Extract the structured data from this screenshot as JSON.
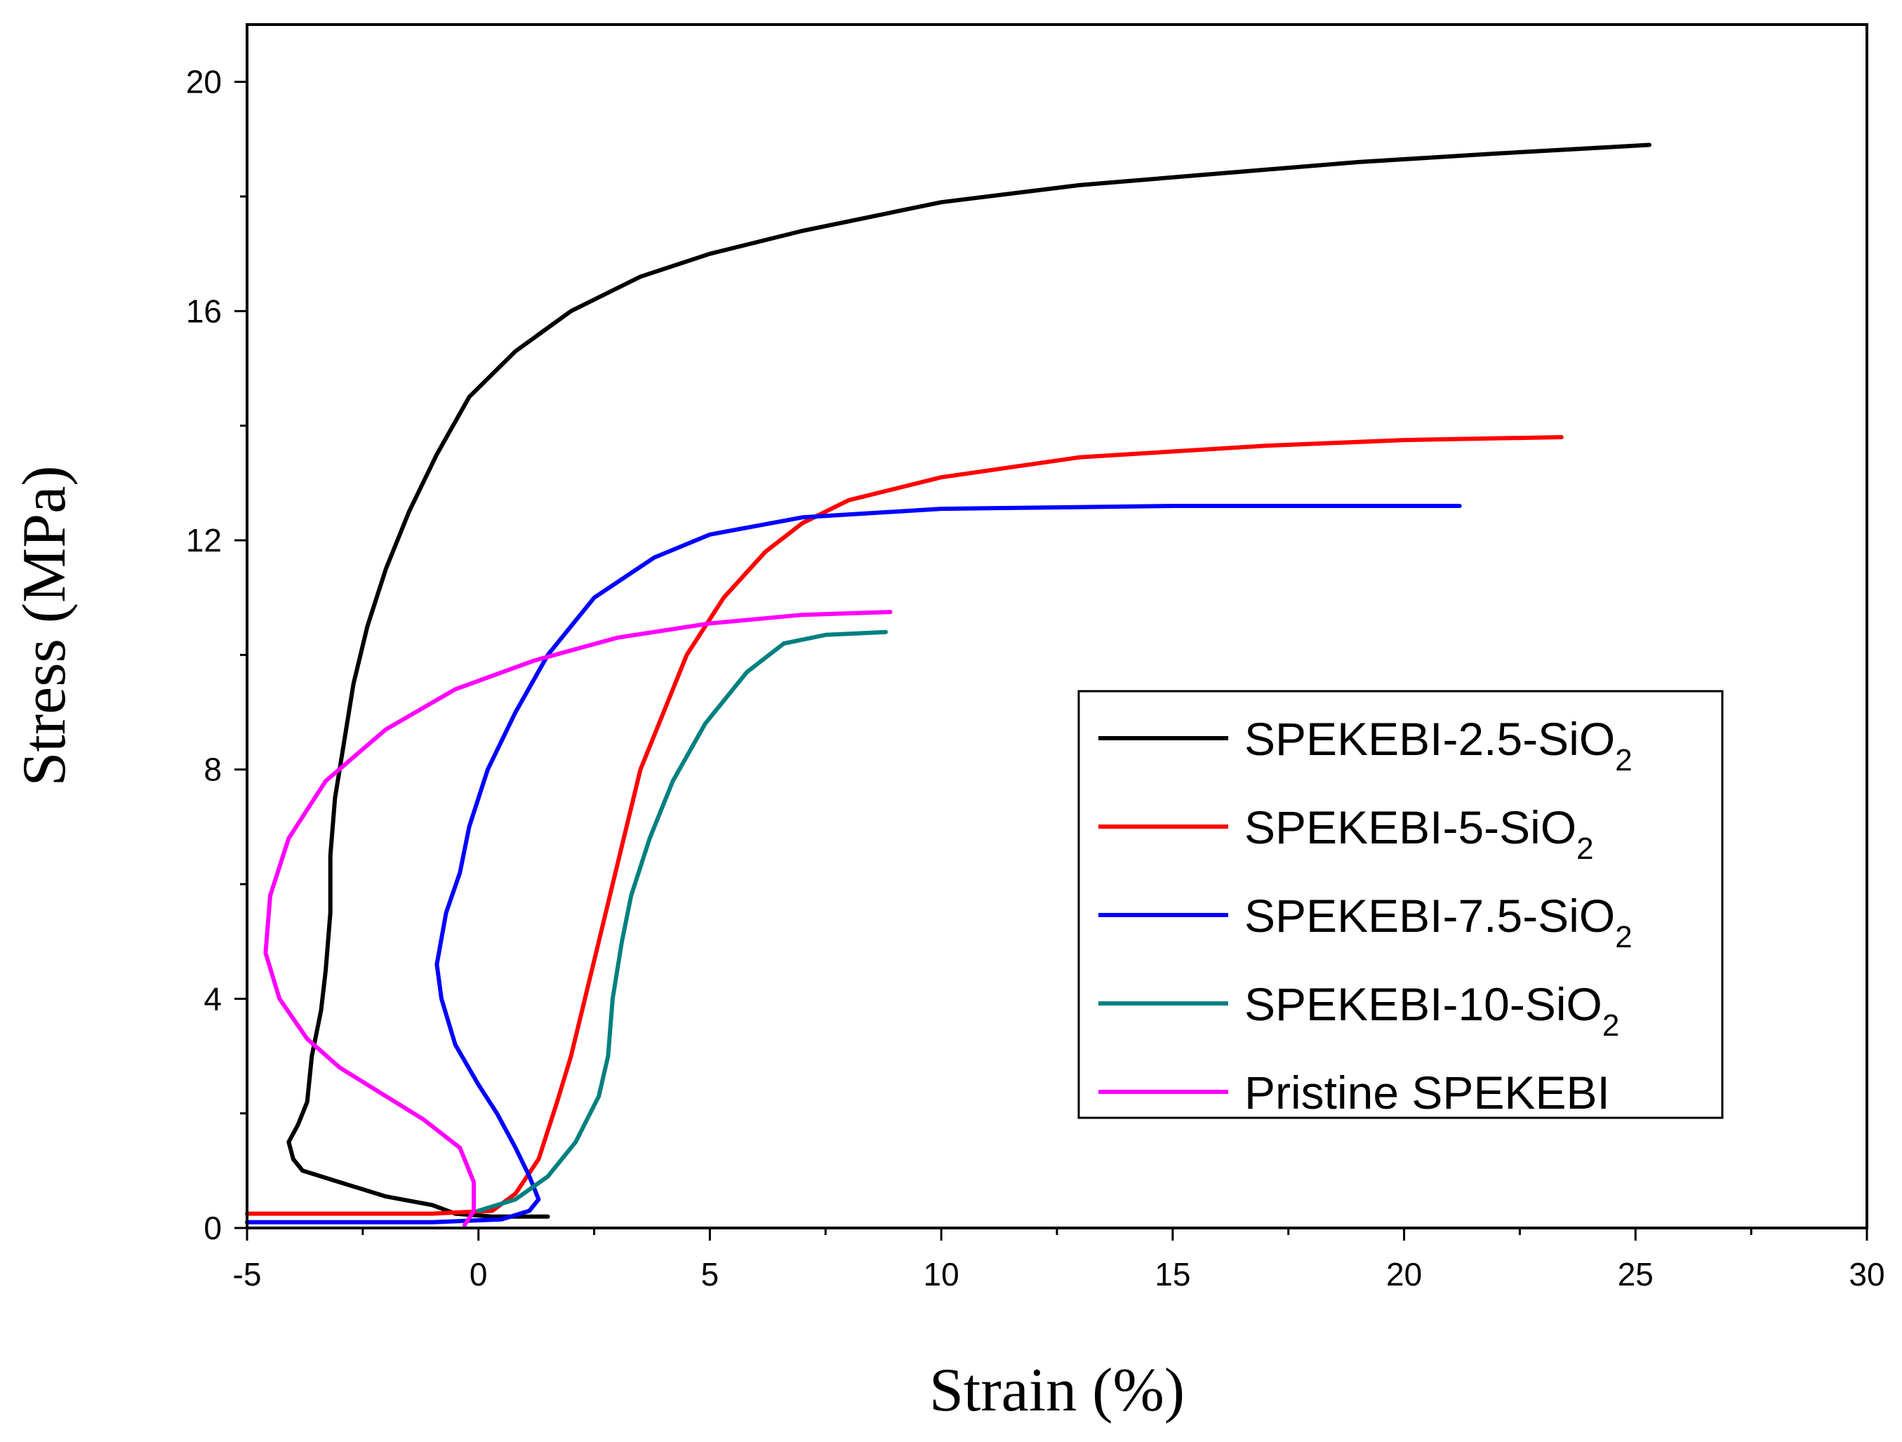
{
  "chart_data": {
    "type": "line",
    "title": "",
    "xlabel": "Strain (%)",
    "ylabel": "Stress (MPa)",
    "xlim": [
      -5,
      30
    ],
    "ylim": [
      0,
      21
    ],
    "xticks": [
      -5,
      0,
      5,
      10,
      15,
      20,
      25,
      30
    ],
    "xtick_labels": [
      "-5",
      "0",
      "5",
      "10",
      "15",
      "20",
      "25",
      "30"
    ],
    "yticks": [
      0,
      4,
      8,
      12,
      16,
      20
    ],
    "ytick_labels": [
      "0",
      "4",
      "8",
      "12",
      "16",
      "20"
    ],
    "grid": false,
    "legend_position": "center-right",
    "series": [
      {
        "name": "SPEKEBI-2.5-SiO2",
        "legend_main": "SPEKEBI-2.5-SiO",
        "legend_sub": "2",
        "color": "#000000",
        "points": [
          [
            1.5,
            0.2
          ],
          [
            0.3,
            0.2
          ],
          [
            -0.5,
            0.25
          ],
          [
            -1.0,
            0.4
          ],
          [
            -2.0,
            0.55
          ],
          [
            -3.0,
            0.8
          ],
          [
            -3.8,
            1.0
          ],
          [
            -4.0,
            1.2
          ],
          [
            -4.1,
            1.5
          ],
          [
            -3.9,
            1.8
          ],
          [
            -3.7,
            2.2
          ],
          [
            -3.6,
            3.0
          ],
          [
            -3.4,
            3.8
          ],
          [
            -3.3,
            4.5
          ],
          [
            -3.2,
            5.5
          ],
          [
            -3.2,
            6.5
          ],
          [
            -3.1,
            7.5
          ],
          [
            -2.9,
            8.5
          ],
          [
            -2.7,
            9.5
          ],
          [
            -2.4,
            10.5
          ],
          [
            -2.0,
            11.5
          ],
          [
            -1.5,
            12.5
          ],
          [
            -0.9,
            13.5
          ],
          [
            -0.2,
            14.5
          ],
          [
            0.8,
            15.3
          ],
          [
            2.0,
            16.0
          ],
          [
            3.5,
            16.6
          ],
          [
            5.0,
            17.0
          ],
          [
            7.0,
            17.4
          ],
          [
            10.0,
            17.9
          ],
          [
            13.0,
            18.2
          ],
          [
            16.0,
            18.4
          ],
          [
            19.0,
            18.6
          ],
          [
            22.0,
            18.75
          ],
          [
            25.3,
            18.9
          ]
        ]
      },
      {
        "name": "SPEKEBI-5-SiO2",
        "legend_main": "SPEKEBI-5-SiO",
        "legend_sub": "2",
        "color": "#ff0000",
        "points": [
          [
            -5.0,
            0.25
          ],
          [
            -1.0,
            0.25
          ],
          [
            0.3,
            0.3
          ],
          [
            0.8,
            0.6
          ],
          [
            1.3,
            1.2
          ],
          [
            1.7,
            2.2
          ],
          [
            2.0,
            3.0
          ],
          [
            2.3,
            4.0
          ],
          [
            2.6,
            5.0
          ],
          [
            2.9,
            6.0
          ],
          [
            3.2,
            7.0
          ],
          [
            3.5,
            8.0
          ],
          [
            4.0,
            9.0
          ],
          [
            4.5,
            10.0
          ],
          [
            5.3,
            11.0
          ],
          [
            6.2,
            11.8
          ],
          [
            7.0,
            12.3
          ],
          [
            8.0,
            12.7
          ],
          [
            10.0,
            13.1
          ],
          [
            13.0,
            13.45
          ],
          [
            17.0,
            13.65
          ],
          [
            20.0,
            13.75
          ],
          [
            23.4,
            13.8
          ]
        ]
      },
      {
        "name": "SPEKEBI-7.5-SiO2",
        "legend_main": "SPEKEBI-7.5-SiO",
        "legend_sub": "2",
        "color": "#0000ff",
        "points": [
          [
            -5.0,
            0.1
          ],
          [
            -1.0,
            0.1
          ],
          [
            0.5,
            0.15
          ],
          [
            1.1,
            0.3
          ],
          [
            1.3,
            0.5
          ],
          [
            1.1,
            0.9
          ],
          [
            0.8,
            1.4
          ],
          [
            0.4,
            2.0
          ],
          [
            0.0,
            2.5
          ],
          [
            -0.5,
            3.2
          ],
          [
            -0.8,
            4.0
          ],
          [
            -0.9,
            4.6
          ],
          [
            -0.7,
            5.5
          ],
          [
            -0.4,
            6.2
          ],
          [
            -0.2,
            7.0
          ],
          [
            0.2,
            8.0
          ],
          [
            0.8,
            9.0
          ],
          [
            1.5,
            10.0
          ],
          [
            2.5,
            11.0
          ],
          [
            3.8,
            11.7
          ],
          [
            5.0,
            12.1
          ],
          [
            7.0,
            12.4
          ],
          [
            10.0,
            12.55
          ],
          [
            15.0,
            12.6
          ],
          [
            21.2,
            12.6
          ]
        ]
      },
      {
        "name": "SPEKEBI-10-SiO2",
        "legend_main": "SPEKEBI-10-SiO",
        "legend_sub": "2",
        "color": "#008080",
        "points": [
          [
            0.0,
            0.3
          ],
          [
            0.8,
            0.5
          ],
          [
            1.5,
            0.9
          ],
          [
            2.1,
            1.5
          ],
          [
            2.6,
            2.3
          ],
          [
            2.8,
            3.0
          ],
          [
            2.9,
            4.0
          ],
          [
            3.1,
            5.0
          ],
          [
            3.3,
            5.8
          ],
          [
            3.7,
            6.8
          ],
          [
            4.2,
            7.8
          ],
          [
            4.9,
            8.8
          ],
          [
            5.8,
            9.7
          ],
          [
            6.6,
            10.2
          ],
          [
            7.5,
            10.35
          ],
          [
            8.8,
            10.4
          ]
        ]
      },
      {
        "name": "Pristine SPEKEBI",
        "legend_main": "Pristine SPEKEBI",
        "legend_sub": "",
        "color": "#ff00ff",
        "points": [
          [
            -0.3,
            0.05
          ],
          [
            -0.1,
            0.3
          ],
          [
            -0.1,
            0.8
          ],
          [
            -0.4,
            1.4
          ],
          [
            -1.2,
            1.9
          ],
          [
            -2.0,
            2.3
          ],
          [
            -3.0,
            2.8
          ],
          [
            -3.7,
            3.3
          ],
          [
            -4.3,
            4.0
          ],
          [
            -4.6,
            4.8
          ],
          [
            -4.5,
            5.8
          ],
          [
            -4.1,
            6.8
          ],
          [
            -3.3,
            7.8
          ],
          [
            -2.0,
            8.7
          ],
          [
            -0.5,
            9.4
          ],
          [
            1.2,
            9.9
          ],
          [
            3.0,
            10.3
          ],
          [
            5.0,
            10.55
          ],
          [
            7.0,
            10.7
          ],
          [
            8.9,
            10.75
          ]
        ]
      }
    ]
  }
}
